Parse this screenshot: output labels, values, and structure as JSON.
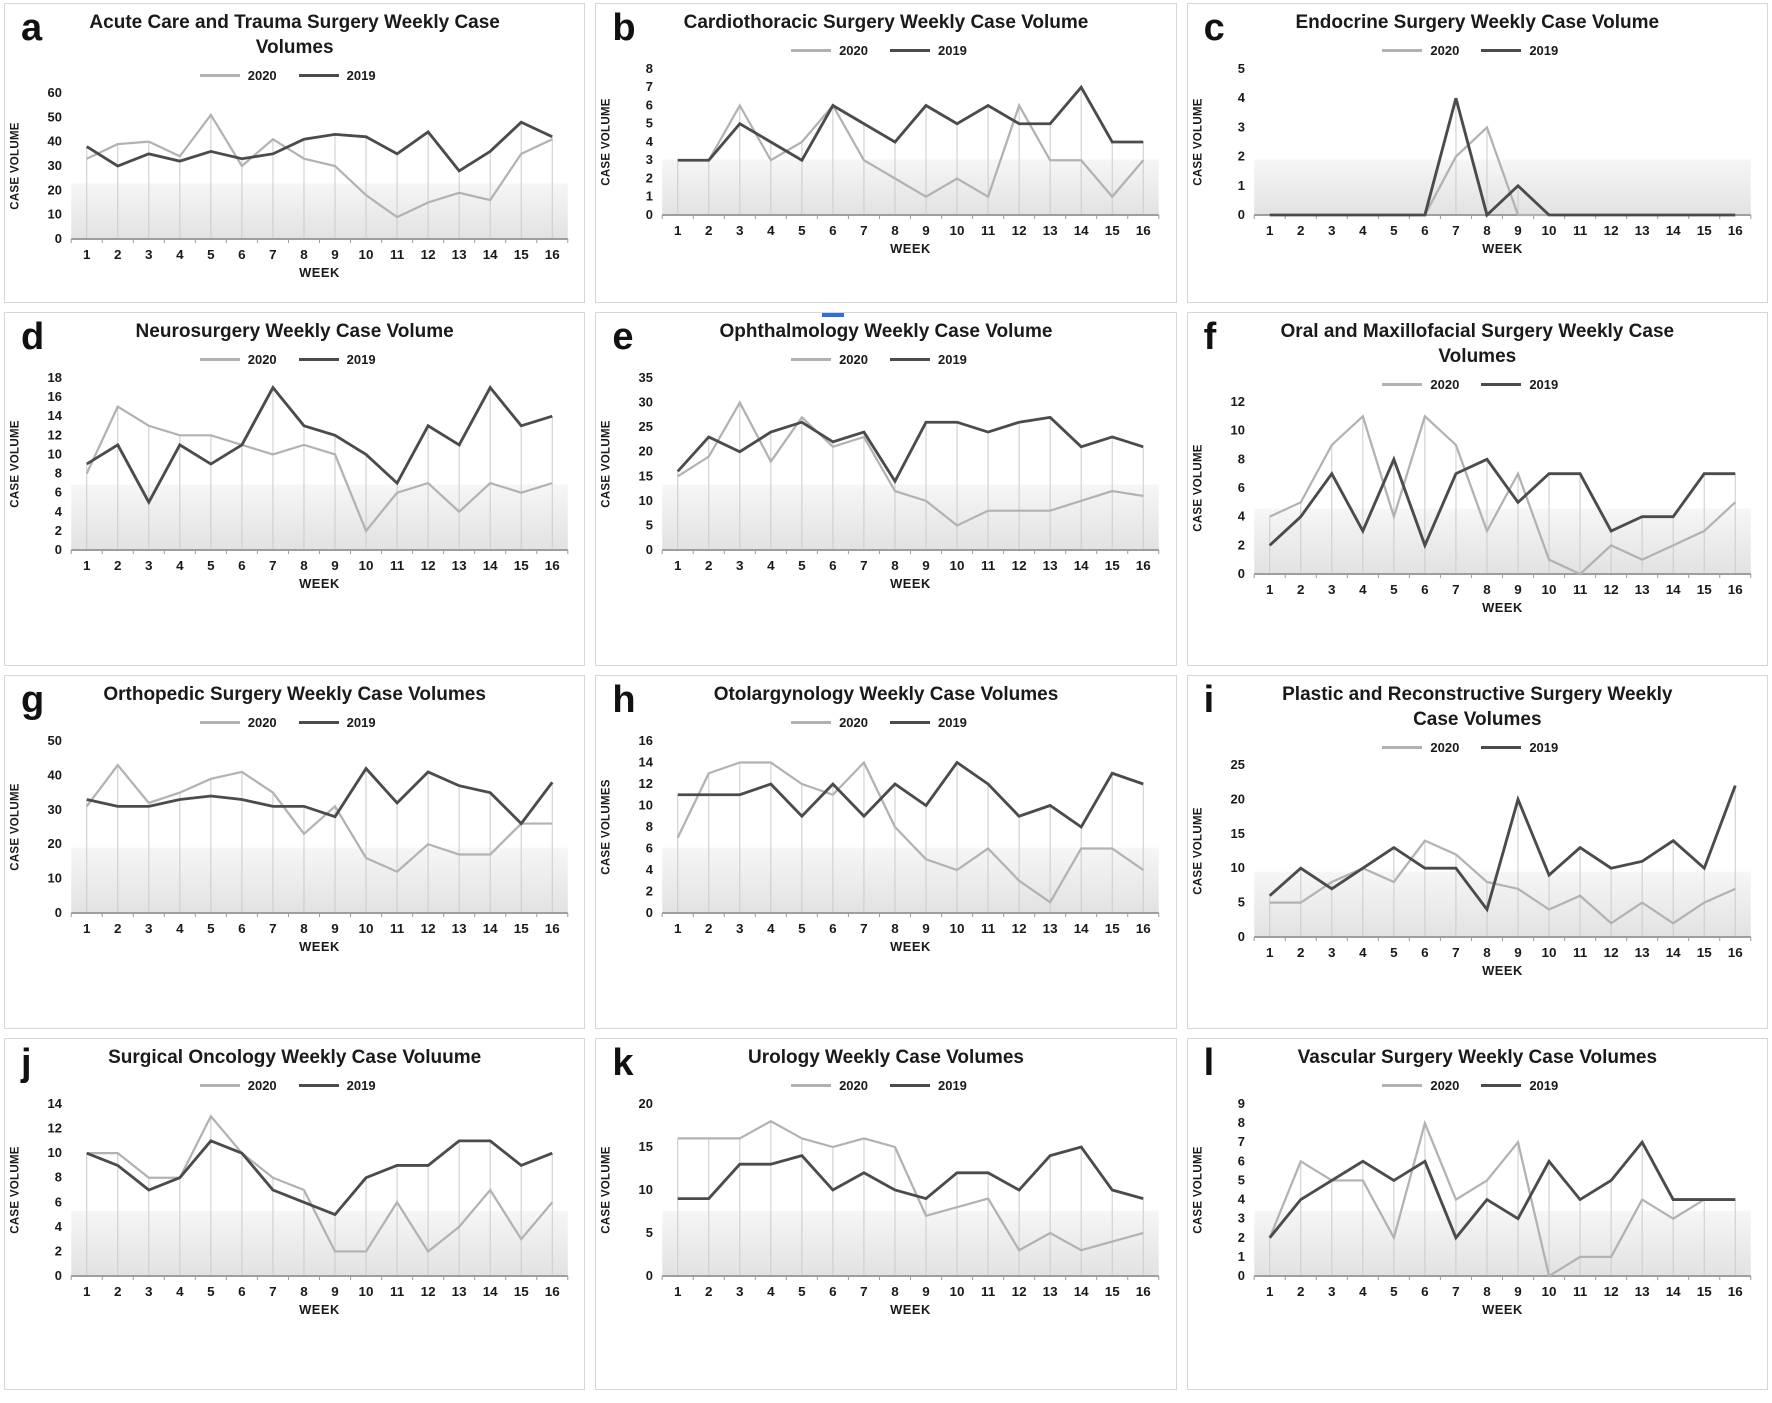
{
  "page": {
    "background": "#ffffff"
  },
  "colors": {
    "series2020": "#b2b2b2",
    "series2019": "#4b4b4b",
    "dropline": "#cccccc",
    "axis": "#9e9e9e",
    "band_top": "#f6f6f6",
    "band_bottom": "#e2e2e2",
    "panel_border": "#d6d6d6",
    "text": "#1a1a1a",
    "artifact_blue": "#2e6fe0"
  },
  "chart_data": [
    {
      "id": "a",
      "type": "line",
      "title": "Acute Care and Trauma Surgery Weekly Case Volumes",
      "xlabel": "WEEK",
      "ylabel": "CASE VOLUME",
      "x": [
        1,
        2,
        3,
        4,
        5,
        6,
        7,
        8,
        9,
        10,
        11,
        12,
        13,
        14,
        15,
        16
      ],
      "ylim": [
        0,
        60
      ],
      "ytick_step": 10,
      "legend": [
        "2020",
        "2019"
      ],
      "series": [
        {
          "name": "2020",
          "values": [
            33,
            39,
            40,
            34,
            51,
            30,
            41,
            33,
            30,
            18,
            9,
            15,
            19,
            16,
            35,
            41
          ]
        },
        {
          "name": "2019",
          "values": [
            38,
            30,
            35,
            32,
            36,
            33,
            35,
            41,
            43,
            42,
            35,
            44,
            28,
            36,
            48,
            42
          ]
        }
      ]
    },
    {
      "id": "b",
      "type": "line",
      "title": "Cardiothoracic Surgery Weekly Case Volume",
      "xlabel": "WEEK",
      "ylabel": "CASE VOLUME",
      "x": [
        1,
        2,
        3,
        4,
        5,
        6,
        7,
        8,
        9,
        10,
        11,
        12,
        13,
        14,
        15,
        16
      ],
      "ylim": [
        0,
        8
      ],
      "ytick_step": 1,
      "legend": [
        "2020",
        "2019"
      ],
      "series": [
        {
          "name": "2020",
          "values": [
            3,
            3,
            6,
            3,
            4,
            6,
            3,
            2,
            1,
            2,
            1,
            6,
            3,
            3,
            1,
            3
          ]
        },
        {
          "name": "2019",
          "values": [
            3,
            3,
            5,
            4,
            3,
            6,
            5,
            4,
            6,
            5,
            6,
            5,
            5,
            7,
            4,
            4
          ]
        }
      ]
    },
    {
      "id": "c",
      "type": "line",
      "title": "Endocrine Surgery Weekly Case Volume",
      "xlabel": "WEEK",
      "ylabel": "CASE VOLUME",
      "x": [
        1,
        2,
        3,
        4,
        5,
        6,
        7,
        8,
        9,
        10,
        11,
        12,
        13,
        14,
        15,
        16
      ],
      "ylim": [
        0,
        5
      ],
      "ytick_step": 1,
      "legend": [
        "2020",
        "2019"
      ],
      "series": [
        {
          "name": "2020",
          "values": [
            0,
            0,
            0,
            0,
            0,
            0,
            2,
            3,
            0,
            0,
            0,
            0,
            0,
            0,
            0,
            0
          ]
        },
        {
          "name": "2019",
          "values": [
            0,
            0,
            0,
            0,
            0,
            0,
            4,
            0,
            1,
            0,
            0,
            0,
            0,
            0,
            0,
            0
          ]
        }
      ]
    },
    {
      "id": "d",
      "type": "line",
      "title": "Neurosurgery Weekly Case Volume",
      "xlabel": "WEEK",
      "ylabel": "CASE VOLUME",
      "x": [
        1,
        2,
        3,
        4,
        5,
        6,
        7,
        8,
        9,
        10,
        11,
        12,
        13,
        14,
        15,
        16
      ],
      "ylim": [
        0,
        18
      ],
      "ytick_step": 2,
      "legend": [
        "2020",
        "2019"
      ],
      "series": [
        {
          "name": "2020",
          "values": [
            8,
            15,
            13,
            12,
            12,
            11,
            10,
            11,
            10,
            2,
            6,
            7,
            4,
            7,
            6,
            7
          ]
        },
        {
          "name": "2019",
          "values": [
            9,
            11,
            5,
            11,
            9,
            11,
            17,
            13,
            12,
            10,
            7,
            13,
            11,
            17,
            13,
            14
          ]
        }
      ]
    },
    {
      "id": "e",
      "type": "line",
      "title": "Ophthalmology Weekly Case Volume",
      "xlabel": "WEEK",
      "ylabel": "CASE VOLUME",
      "x": [
        1,
        2,
        3,
        4,
        5,
        6,
        7,
        8,
        9,
        10,
        11,
        12,
        13,
        14,
        15,
        16
      ],
      "ylim": [
        0,
        35
      ],
      "ytick_step": 5,
      "legend": [
        "2020",
        "2019"
      ],
      "series": [
        {
          "name": "2020",
          "values": [
            15,
            19,
            30,
            18,
            27,
            21,
            23,
            12,
            10,
            5,
            8,
            8,
            8,
            10,
            12,
            11
          ]
        },
        {
          "name": "2019",
          "values": [
            16,
            23,
            20,
            24,
            26,
            22,
            24,
            14,
            26,
            26,
            24,
            26,
            27,
            21,
            23,
            21
          ]
        }
      ]
    },
    {
      "id": "f",
      "type": "line",
      "title": "Oral and Maxillofacial Surgery Weekly Case Volumes",
      "xlabel": "WEEK",
      "ylabel": "CASE VOLUME",
      "x": [
        1,
        2,
        3,
        4,
        5,
        6,
        7,
        8,
        9,
        10,
        11,
        12,
        13,
        14,
        15,
        16
      ],
      "ylim": [
        0,
        12
      ],
      "ytick_step": 2,
      "legend": [
        "2020",
        "2019"
      ],
      "series": [
        {
          "name": "2020",
          "values": [
            4,
            5,
            9,
            11,
            4,
            11,
            9,
            3,
            7,
            1,
            0,
            2,
            1,
            2,
            3,
            5
          ]
        },
        {
          "name": "2019",
          "values": [
            2,
            4,
            7,
            3,
            8,
            2,
            7,
            8,
            5,
            7,
            7,
            3,
            4,
            4,
            7,
            7
          ]
        }
      ]
    },
    {
      "id": "g",
      "type": "line",
      "title": "Orthopedic Surgery Weekly Case Volumes",
      "xlabel": "WEEK",
      "ylabel": "CASE VOLUME",
      "x": [
        1,
        2,
        3,
        4,
        5,
        6,
        7,
        8,
        9,
        10,
        11,
        12,
        13,
        14,
        15,
        16
      ],
      "ylim": [
        0,
        50
      ],
      "ytick_step": 10,
      "legend": [
        "2020",
        "2019"
      ],
      "series": [
        {
          "name": "2020",
          "values": [
            31,
            43,
            32,
            35,
            39,
            41,
            35,
            23,
            31,
            16,
            12,
            20,
            17,
            17,
            26,
            26
          ]
        },
        {
          "name": "2019",
          "values": [
            33,
            31,
            31,
            33,
            34,
            33,
            31,
            31,
            28,
            42,
            32,
            41,
            37,
            35,
            26,
            38
          ]
        }
      ]
    },
    {
      "id": "h",
      "type": "line",
      "title": "Otolargynology Weekly Case Volumes",
      "xlabel": "WEEK",
      "ylabel": "CASE VOLUMES",
      "x": [
        1,
        2,
        3,
        4,
        5,
        6,
        7,
        8,
        9,
        10,
        11,
        12,
        13,
        14,
        15,
        16
      ],
      "ylim": [
        0,
        16
      ],
      "ytick_step": 2,
      "legend": [
        "2020",
        "2019"
      ],
      "series": [
        {
          "name": "2020",
          "values": [
            7,
            13,
            14,
            14,
            12,
            11,
            14,
            8,
            5,
            4,
            6,
            3,
            1,
            6,
            6,
            4
          ]
        },
        {
          "name": "2019",
          "values": [
            11,
            11,
            11,
            12,
            9,
            12,
            9,
            12,
            10,
            14,
            12,
            9,
            10,
            8,
            13,
            12
          ]
        }
      ]
    },
    {
      "id": "i",
      "type": "line",
      "title": "Plastic and Reconstructive Surgery Weekly Case Volumes",
      "xlabel": "WEEK",
      "ylabel": "CASE VOLUME",
      "x": [
        1,
        2,
        3,
        4,
        5,
        6,
        7,
        8,
        9,
        10,
        11,
        12,
        13,
        14,
        15,
        16
      ],
      "ylim": [
        0,
        25
      ],
      "ytick_step": 5,
      "legend": [
        "2020",
        "2019"
      ],
      "series": [
        {
          "name": "2020",
          "values": [
            5,
            5,
            8,
            10,
            8,
            14,
            12,
            8,
            7,
            4,
            6,
            2,
            5,
            2,
            5,
            7
          ]
        },
        {
          "name": "2019",
          "values": [
            6,
            10,
            7,
            10,
            13,
            10,
            10,
            4,
            20,
            9,
            13,
            10,
            11,
            14,
            10,
            22
          ]
        }
      ]
    },
    {
      "id": "j",
      "type": "line",
      "title": "Surgical Oncology Weekly Case Voluume",
      "xlabel": "WEEK",
      "ylabel": "CASE VOLUME",
      "x": [
        1,
        2,
        3,
        4,
        5,
        6,
        7,
        8,
        9,
        10,
        11,
        12,
        13,
        14,
        15,
        16
      ],
      "ylim": [
        0,
        14
      ],
      "ytick_step": 2,
      "legend": [
        "2020",
        "2019"
      ],
      "series": [
        {
          "name": "2020",
          "values": [
            10,
            10,
            8,
            8,
            13,
            10,
            8,
            7,
            2,
            2,
            6,
            2,
            4,
            7,
            3,
            6
          ]
        },
        {
          "name": "2019",
          "values": [
            10,
            9,
            7,
            8,
            11,
            10,
            7,
            6,
            5,
            8,
            9,
            9,
            11,
            11,
            9,
            10
          ]
        }
      ]
    },
    {
      "id": "k",
      "type": "line",
      "title": "Urology Weekly Case Volumes",
      "xlabel": "WEEK",
      "ylabel": "CASE VOLUME",
      "x": [
        1,
        2,
        3,
        4,
        5,
        6,
        7,
        8,
        9,
        10,
        11,
        12,
        13,
        14,
        15,
        16
      ],
      "ylim": [
        0,
        20
      ],
      "ytick_step": 5,
      "legend": [
        "2020",
        "2019"
      ],
      "series": [
        {
          "name": "2020",
          "values": [
            16,
            16,
            16,
            18,
            16,
            15,
            16,
            15,
            7,
            8,
            9,
            3,
            5,
            3,
            4,
            5
          ]
        },
        {
          "name": "2019",
          "values": [
            9,
            9,
            13,
            13,
            14,
            10,
            12,
            10,
            9,
            12,
            12,
            10,
            14,
            15,
            10,
            9
          ]
        }
      ]
    },
    {
      "id": "l",
      "type": "line",
      "title": "Vascular Surgery Weekly Case Volumes",
      "xlabel": "WEEK",
      "ylabel": "CASE VOLUME",
      "x": [
        1,
        2,
        3,
        4,
        5,
        6,
        7,
        8,
        9,
        10,
        11,
        12,
        13,
        14,
        15,
        16
      ],
      "ylim": [
        0,
        9
      ],
      "ytick_step": 1,
      "legend": [
        "2020",
        "2019"
      ],
      "series": [
        {
          "name": "2020",
          "values": [
            2,
            6,
            5,
            5,
            2,
            8,
            4,
            5,
            7,
            0,
            1,
            1,
            4,
            3,
            4,
            4
          ]
        },
        {
          "name": "2019",
          "values": [
            2,
            4,
            5,
            6,
            5,
            6,
            2,
            4,
            3,
            6,
            4,
            5,
            7,
            4,
            4,
            4
          ]
        }
      ]
    }
  ]
}
